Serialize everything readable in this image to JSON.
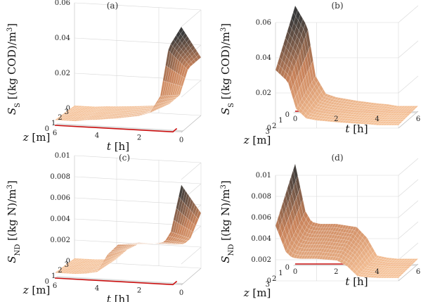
{
  "chart_data": [
    {
      "type": "surface",
      "panel": "(a)",
      "zlabel": {
        "main": "S",
        "sub": "S",
        "unit": " [(kg COD)/m",
        "sup": "3",
        "close": "]"
      },
      "xlabel": {
        "var": "t",
        "unit": " [h]"
      },
      "ylabel": {
        "var": "z",
        "unit": " [m]"
      },
      "zticks": [
        "0",
        "0.02",
        "0.04",
        "0.06"
      ],
      "tticks": [
        "0",
        "2",
        "4",
        "6"
      ],
      "zdticks": [
        "0",
        "1",
        "2",
        "3"
      ],
      "zlim": [
        0,
        0.06
      ],
      "xlim": [
        0,
        6
      ],
      "ylim": [
        0,
        3
      ],
      "series": [
        {
          "t": [
            0,
            0.6,
            1.0,
            1.5,
            2.0,
            3.0,
            4.0,
            4.5,
            5.0,
            6.0
          ],
          "values": [
            0.06,
            0.048,
            0.02,
            0.01,
            0.008,
            0.006,
            0.0045,
            0.004,
            0.003,
            0.003
          ]
        }
      ]
    },
    {
      "type": "surface",
      "panel": "(b)",
      "zlabel": {
        "main": "S",
        "sub": "S",
        "unit": " [(kg COD)/m",
        "sup": "3",
        "close": "]"
      },
      "xlabel": {
        "var": "t",
        "unit": " [h]"
      },
      "ylabel": {
        "var": "z",
        "unit": " [m]"
      },
      "zticks": [
        "0",
        "0.02",
        "0.04",
        "0.06"
      ],
      "tticks": [
        "0",
        "2",
        "4",
        "6"
      ],
      "zdticks": [
        "0",
        "1",
        "2",
        "3"
      ],
      "zlim": [
        0,
        0.06
      ],
      "xlim": [
        0,
        6
      ],
      "ylim": [
        0,
        3
      ],
      "series": [
        {
          "t": [
            0,
            0.6,
            1.0,
            1.5,
            2.0,
            3.0,
            4.0,
            4.5,
            5.0,
            6.0
          ],
          "values": [
            0.06,
            0.048,
            0.02,
            0.01,
            0.008,
            0.006,
            0.0045,
            0.004,
            0.003,
            0.003
          ]
        }
      ]
    },
    {
      "type": "surface",
      "panel": "(c)",
      "zlabel": {
        "main": "S",
        "sub": "ND",
        "unit": " [(kg N)/m",
        "sup": "3",
        "close": "]"
      },
      "xlabel": {
        "var": "t",
        "unit": " [h]"
      },
      "ylabel": {
        "var": "z",
        "unit": " [m]"
      },
      "zticks": [
        "0",
        "0.002",
        "0.004",
        "0.006",
        "0.008",
        "0.01"
      ],
      "tticks": [
        "0",
        "2",
        "4",
        "6"
      ],
      "zdticks": [
        "0",
        "1",
        "2",
        "3"
      ],
      "zlim": [
        0,
        0.01
      ],
      "xlim": [
        0,
        6
      ],
      "ylim": [
        0,
        3
      ],
      "series": [
        {
          "t": [
            0,
            0.5,
            0.8,
            1.2,
            2.0,
            3.0,
            3.5,
            4.0,
            4.5,
            5.0,
            6.0
          ],
          "values": [
            0.0095,
            0.005,
            0.004,
            0.0038,
            0.0038,
            0.0035,
            0.0025,
            0.0008,
            0.0006,
            0.0005,
            0.0005
          ]
        }
      ]
    },
    {
      "type": "surface",
      "panel": "(d)",
      "zlabel": {
        "main": "S",
        "sub": "ND",
        "unit": " [(kg N)/m",
        "sup": "3",
        "close": "]"
      },
      "xlabel": {
        "var": "t",
        "unit": " [h]"
      },
      "ylabel": {
        "var": "z",
        "unit": " [m]"
      },
      "zticks": [
        "0",
        "0.002",
        "0.004",
        "0.006",
        "0.008",
        "0.01"
      ],
      "tticks": [
        "0",
        "2",
        "4",
        "6"
      ],
      "zdticks": [
        "0",
        "1",
        "2",
        "3"
      ],
      "zlim": [
        0,
        0.01
      ],
      "xlim": [
        0,
        6
      ],
      "ylim": [
        0,
        3
      ],
      "series": [
        {
          "t": [
            0,
            0.5,
            0.8,
            1.2,
            2.0,
            3.0,
            3.5,
            4.0,
            4.5,
            5.0,
            6.0
          ],
          "values": [
            0.0095,
            0.005,
            0.004,
            0.0038,
            0.0038,
            0.0035,
            0.0025,
            0.0008,
            0.0006,
            0.0005,
            0.0005
          ]
        }
      ]
    }
  ],
  "colors": {
    "surface_low": "#f8c59a",
    "surface_mid": "#c8825a",
    "surface_high": "#3a3a3a",
    "base_shadow": "#9a9a9a",
    "red_edge": "#cc1111",
    "grid": "#d8d8d8"
  }
}
